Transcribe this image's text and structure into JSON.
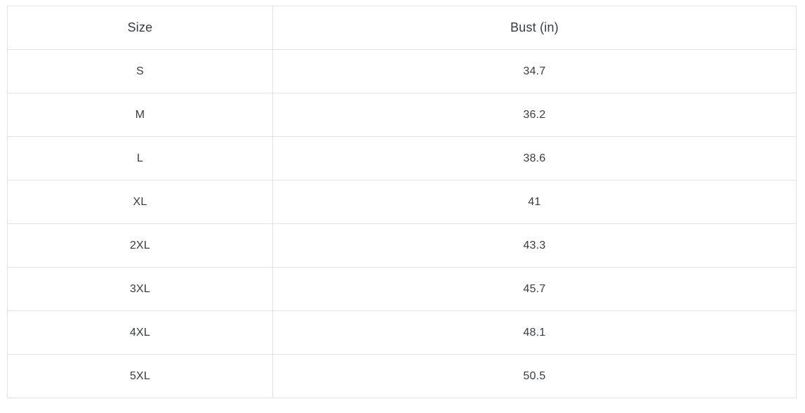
{
  "chart_data": {
    "type": "table",
    "columns": [
      "Size",
      "Bust (in)"
    ],
    "rows": [
      [
        "S",
        "34.7"
      ],
      [
        "M",
        "36.2"
      ],
      [
        "L",
        "38.6"
      ],
      [
        "XL",
        "41"
      ],
      [
        "2XL",
        "43.3"
      ],
      [
        "3XL",
        "45.7"
      ],
      [
        "4XL",
        "48.1"
      ],
      [
        "5XL",
        "50.5"
      ]
    ],
    "layout": {
      "grid": "full-borders",
      "header_position": "top",
      "text_align": "center"
    }
  },
  "colors": {
    "background": "#ffffff",
    "border": "#e2e3e5",
    "text": "#373c43"
  }
}
